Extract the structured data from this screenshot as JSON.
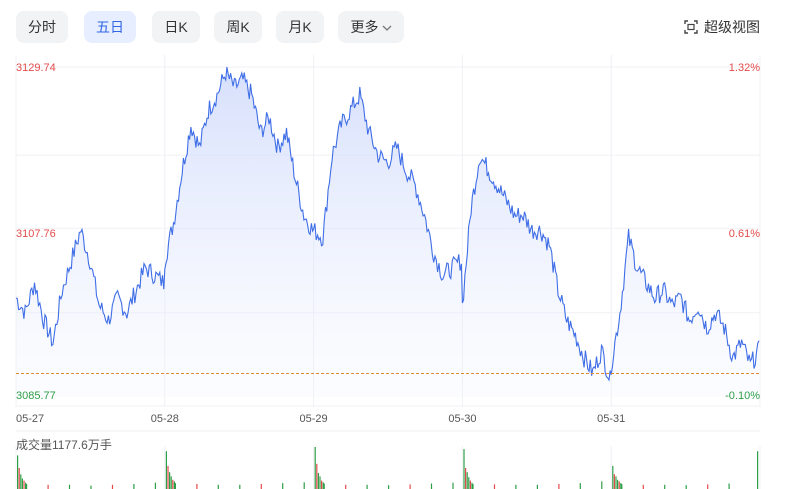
{
  "tabs": [
    {
      "label": "分时",
      "active": false
    },
    {
      "label": "五日",
      "active": true
    },
    {
      "label": "日K",
      "active": false
    },
    {
      "label": "周K",
      "active": false
    },
    {
      "label": "月K",
      "active": false
    },
    {
      "label": "更多",
      "active": false,
      "dropdown": true
    }
  ],
  "super_view": {
    "label": "超级视图",
    "icon": "fullscreen-icon"
  },
  "volume_label": "成交量1177.6万手",
  "colors": {
    "up": "#e34b4b",
    "down": "#2e9e48",
    "line": "#3f6ee6",
    "base": "#e08a2c",
    "active_tab": "#3266e3"
  },
  "chart_data": {
    "type": "line",
    "y_ticks": [
      {
        "price": "3129.74",
        "pct": "1.32%",
        "color": "up"
      },
      {
        "price": "3107.76",
        "pct": "0.61%",
        "color": "up"
      },
      {
        "price": "3085.77",
        "pct": "-0.10%",
        "color": "down"
      }
    ],
    "x_ticks": [
      "05-27",
      "05-28",
      "05-29",
      "05-30",
      "05-31"
    ],
    "ylim": [
      3085.77,
      3129.74
    ],
    "base_price": 3088.9,
    "grid": true,
    "days": [
      {
        "date": "05-27",
        "series": [
          3099,
          3097,
          3101,
          3096,
          3093,
          3100,
          3104,
          3108,
          3104,
          3098,
          3096,
          3099,
          3097,
          3100,
          3103,
          3102,
          3101
        ]
      },
      {
        "date": "05-28",
        "series": [
          3104,
          3109,
          3116,
          3122,
          3119,
          3124,
          3126,
          3129,
          3127,
          3128,
          3126,
          3121,
          3123,
          3119,
          3121,
          3115,
          3110,
          3108
        ]
      },
      {
        "date": "05-29",
        "series": [
          3108,
          3107,
          3118,
          3122,
          3124,
          3126,
          3121,
          3118,
          3117,
          3119,
          3116,
          3114,
          3110,
          3105,
          3102,
          3103,
          3104
        ]
      },
      {
        "date": "05-30",
        "series": [
          3098,
          3111,
          3118,
          3116,
          3114,
          3112,
          3110,
          3110,
          3108,
          3108,
          3106,
          3100,
          3096,
          3094,
          3091,
          3089,
          3092,
          3088
        ]
      },
      {
        "date": "05-31",
        "series": [
          3090,
          3097,
          3107,
          3103,
          3101,
          3099,
          3100,
          3098,
          3099,
          3096,
          3098,
          3095,
          3097,
          3095,
          3091,
          3093,
          3090,
          3092
        ]
      }
    ],
    "volume": {
      "label": "成交量1177.6万手",
      "days": [
        {
          "date": "05-27",
          "bars": [
            0.8,
            0.5,
            0.35,
            0.25,
            0.2,
            0.15,
            0.12,
            0.1,
            0.1,
            0.08,
            0.1,
            0.12,
            0.15
          ]
        },
        {
          "date": "05-28",
          "bars": [
            0.9,
            0.55,
            0.4,
            0.3,
            0.22,
            0.18,
            0.14,
            0.12,
            0.1,
            0.1,
            0.12,
            0.14,
            0.16
          ]
        },
        {
          "date": "05-29",
          "bars": [
            1.0,
            0.6,
            0.38,
            0.3,
            0.2,
            0.16,
            0.13,
            0.1,
            0.1,
            0.09,
            0.11,
            0.13,
            0.15
          ]
        },
        {
          "date": "05-30",
          "bars": [
            0.95,
            0.5,
            0.4,
            0.28,
            0.2,
            0.15,
            0.12,
            0.11,
            0.1,
            0.1,
            0.12,
            0.14,
            0.18
          ]
        },
        {
          "date": "05-31",
          "bars": [
            0.55,
            0.35,
            0.3,
            0.22,
            0.18,
            0.14,
            0.12,
            0.1,
            0.1,
            0.09,
            0.11,
            0.13,
            0.9
          ]
        }
      ]
    }
  }
}
